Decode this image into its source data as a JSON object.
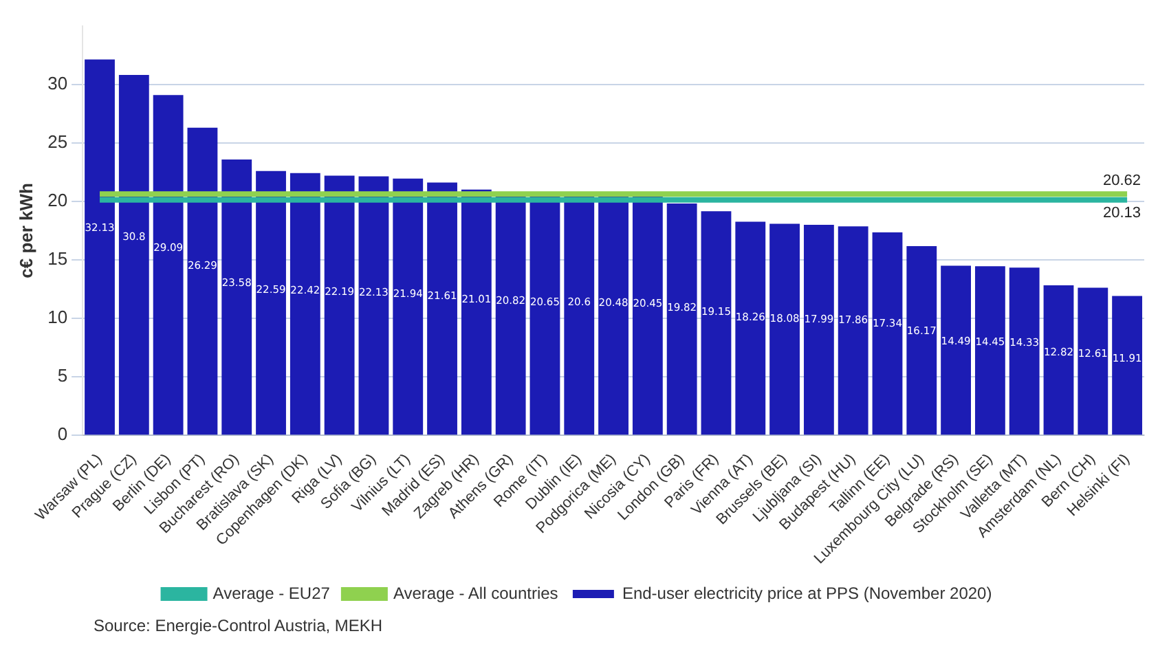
{
  "chart_data": {
    "type": "bar",
    "ylabel": "c€ per kWh",
    "categories": [
      "Warsaw (PL)",
      "Prague (CZ)",
      "Berlin (DE)",
      "Lisbon (PT)",
      "Bucharest (RO)",
      "Bratislava (SK)",
      "Copenhagen (DK)",
      "Riga (LV)",
      "Sofia (BG)",
      "Vilnius (LT)",
      "Madrid (ES)",
      "Zagreb (HR)",
      "Athens (GR)",
      "Rome (IT)",
      "Dublin (IE)",
      "Podgorica (ME)",
      "Nicosia (CY)",
      "London (GB)",
      "Paris (FR)",
      "Vienna (AT)",
      "Brussels (BE)",
      "Ljubljana (SI)",
      "Budapest (HU)",
      "Tallinn (EE)",
      "Luxembourg City (LU)",
      "Belgrade (RS)",
      "Stockholm (SE)",
      "Valletta (MT)",
      "Amsterdam (NL)",
      "Bern (CH)",
      "Helsinki (FI)"
    ],
    "series": [
      {
        "name": "End-user electricity price at PPS (November 2020)",
        "color": "#1c1cb4",
        "values": [
          32.13,
          30.8,
          29.09,
          26.29,
          23.58,
          22.59,
          22.42,
          22.19,
          22.13,
          21.94,
          21.61,
          21.01,
          20.82,
          20.65,
          20.6,
          20.48,
          20.45,
          19.82,
          19.15,
          18.26,
          18.08,
          17.99,
          17.86,
          17.34,
          16.17,
          14.49,
          14.45,
          14.33,
          12.82,
          12.61,
          11.91
        ]
      },
      {
        "name": "Average - EU27",
        "type": "line",
        "color": "#2bb5a0",
        "values": [
          20.13,
          20.13,
          20.13,
          20.13,
          20.13,
          20.13,
          20.13,
          20.13,
          20.13,
          20.13,
          20.13,
          20.13,
          20.13,
          20.13,
          20.13,
          20.13,
          20.13,
          20.13,
          20.13,
          20.13,
          20.13,
          20.13,
          20.13,
          20.13,
          20.13,
          20.13,
          20.13,
          20.13,
          20.13,
          20.13,
          20.13
        ],
        "value_labels": [
          null,
          null,
          null,
          null,
          null,
          null,
          null,
          null,
          null,
          null,
          null,
          null,
          null,
          null,
          null,
          null,
          null,
          null,
          null,
          null,
          null,
          null,
          null,
          null,
          null,
          null,
          null,
          null,
          null,
          null,
          "20.13"
        ]
      },
      {
        "name": "Average - All countries",
        "type": "line",
        "color": "#8fd14f",
        "values": [
          20.62,
          20.62,
          20.62,
          20.62,
          20.62,
          20.62,
          20.62,
          20.62,
          20.62,
          20.62,
          20.62,
          20.62,
          20.62,
          20.62,
          20.62,
          20.62,
          20.62,
          20.62,
          20.62,
          20.62,
          20.62,
          20.62,
          20.62,
          20.62,
          20.62,
          20.62,
          20.62,
          20.62,
          20.62,
          20.62,
          20.62
        ],
        "value_labels": [
          null,
          null,
          null,
          null,
          null,
          null,
          null,
          null,
          null,
          null,
          null,
          null,
          null,
          null,
          null,
          null,
          null,
          null,
          null,
          null,
          null,
          null,
          null,
          null,
          null,
          null,
          null,
          null,
          null,
          null,
          "20.62"
        ]
      }
    ],
    "data_labels": true,
    "ylim": [
      0,
      35
    ],
    "yticks": [
      0,
      5,
      10,
      15,
      20,
      25,
      30
    ],
    "grid": "y",
    "legend": "bottom",
    "annotations": [
      "Source: Energie-Control Austria, MEKH"
    ]
  }
}
